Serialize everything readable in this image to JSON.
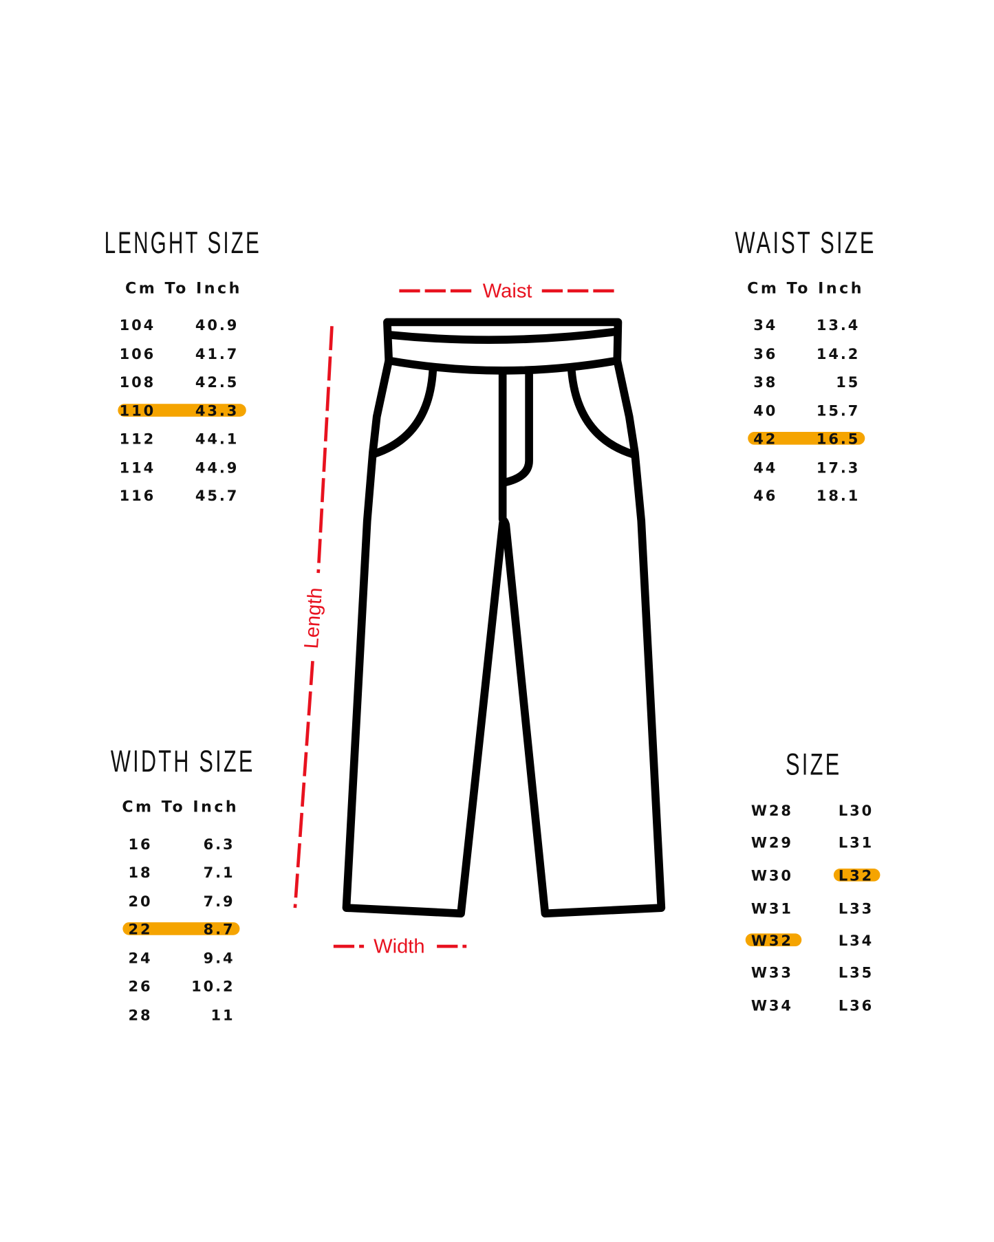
{
  "colors": {
    "highlight": "#f5a400",
    "measure": "#e8121f",
    "outline": "#000000"
  },
  "length": {
    "title": "LENGHT SIZE",
    "subtitle": "Cm To Inch",
    "highlighted_index": 3,
    "rows": [
      [
        "104",
        "40.9"
      ],
      [
        "106",
        "41.7"
      ],
      [
        "108",
        "42.5"
      ],
      [
        "110",
        "43.3"
      ],
      [
        "112",
        "44.1"
      ],
      [
        "114",
        "44.9"
      ],
      [
        "116",
        "45.7"
      ]
    ]
  },
  "waist": {
    "title": "WAIST SIZE",
    "subtitle": "Cm To Inch",
    "highlighted_index": 4,
    "rows": [
      [
        "34",
        "13.4"
      ],
      [
        "36",
        "14.2"
      ],
      [
        "38",
        "15"
      ],
      [
        "40",
        "15.7"
      ],
      [
        "42",
        "16.5"
      ],
      [
        "44",
        "17.3"
      ],
      [
        "46",
        "18.1"
      ]
    ]
  },
  "width": {
    "title": "WIDTH SIZE",
    "subtitle": "Cm To Inch",
    "highlighted_index": 3,
    "rows": [
      [
        "16",
        "6.3"
      ],
      [
        "18",
        "7.1"
      ],
      [
        "20",
        "7.9"
      ],
      [
        "22",
        "8.7"
      ],
      [
        "24",
        "9.4"
      ],
      [
        "26",
        "10.2"
      ],
      [
        "28",
        "11"
      ]
    ]
  },
  "size": {
    "title": "SIZE",
    "highlighted_w": "W32",
    "highlighted_l": "L32",
    "rows": [
      [
        "W28",
        "L30"
      ],
      [
        "W29",
        "L31"
      ],
      [
        "W30",
        "L32"
      ],
      [
        "W31",
        "L33"
      ],
      [
        "W32",
        "L34"
      ],
      [
        "W33",
        "L35"
      ],
      [
        "W34",
        "L36"
      ]
    ]
  },
  "measures": {
    "waist": "Waist",
    "length": "Length",
    "width": "Width"
  },
  "icon": "pants-outline"
}
